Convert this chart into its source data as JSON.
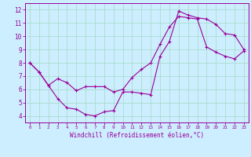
{
  "title": "",
  "xlabel": "Windchill (Refroidissement éolien,°C)",
  "ylabel": "",
  "bg_color": "#cceeff",
  "line_color": "#990099",
  "grid_color": "#aaddcc",
  "line1_x": [
    0,
    1,
    2,
    3,
    4,
    5,
    6,
    7,
    8,
    9,
    10,
    11,
    12,
    13,
    14,
    15,
    16,
    17,
    18,
    19,
    20,
    21,
    22,
    23
  ],
  "line1_y": [
    8.0,
    7.3,
    6.3,
    5.3,
    4.6,
    4.5,
    4.1,
    4.0,
    4.3,
    4.4,
    5.8,
    5.8,
    5.7,
    5.6,
    8.5,
    9.6,
    11.9,
    11.6,
    11.4,
    11.3,
    10.9,
    10.2,
    10.1,
    9.0
  ],
  "line2_x": [
    0,
    1,
    2,
    3,
    4,
    5,
    6,
    7,
    8,
    9,
    10,
    11,
    12,
    13,
    14,
    15,
    16,
    17,
    18,
    19,
    20,
    21,
    22,
    23
  ],
  "line2_y": [
    8.0,
    7.3,
    6.3,
    6.8,
    6.5,
    5.9,
    6.2,
    6.2,
    6.2,
    5.8,
    6.0,
    6.9,
    7.5,
    8.0,
    9.4,
    10.7,
    11.5,
    11.4,
    11.3,
    9.2,
    8.8,
    8.5,
    8.3,
    8.9
  ],
  "ylim": [
    3.5,
    12.5
  ],
  "xlim": [
    -0.5,
    23.5
  ],
  "yticks": [
    4,
    5,
    6,
    7,
    8,
    9,
    10,
    11,
    12
  ],
  "xticks": [
    0,
    1,
    2,
    3,
    4,
    5,
    6,
    7,
    8,
    9,
    10,
    11,
    12,
    13,
    14,
    15,
    16,
    17,
    18,
    19,
    20,
    21,
    22,
    23
  ],
  "xlabel_fontsize": 5.5,
  "xtick_fontsize": 4.2,
  "ytick_fontsize": 5.5
}
